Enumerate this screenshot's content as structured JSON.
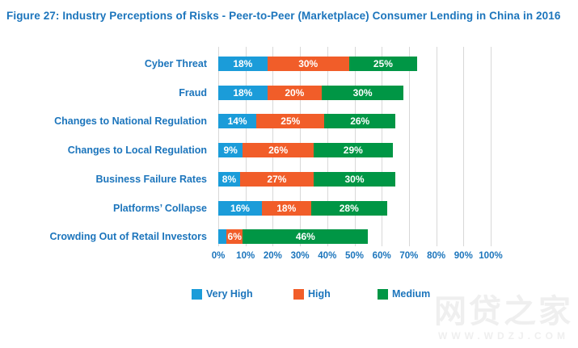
{
  "title": "Figure 27: Industry Perceptions of Risks - Peer-to-Peer (Marketplace) Consumer Lending in China in 2016",
  "colors": {
    "title_blue": "#1C75BC",
    "label_blue": "#1C75BC",
    "tick_blue": "#1C75BC",
    "very_high": "#1B9CD9",
    "high": "#F15D29",
    "medium": "#009645",
    "gridline": "#D8D8D8",
    "bar_label": "#FFFFFF",
    "watermark": "#EFEFEF"
  },
  "chart_data": {
    "type": "bar",
    "orientation": "horizontal",
    "stacked": true,
    "title": "Figure 27: Industry Perceptions of Risks - Peer-to-Peer (Marketplace) Consumer Lending in China in 2016",
    "categories": [
      "Cyber Threat",
      "Fraud",
      "Changes to National Regulation",
      "Changes to Local Regulation",
      "Business Failure Rates",
      "Platforms’ Collapse",
      "Crowding Out of Retail Investors"
    ],
    "series": [
      {
        "name": "Very High",
        "color_key": "very_high",
        "values": [
          18,
          18,
          14,
          9,
          8,
          16,
          3
        ],
        "labels": [
          "18%",
          "18%",
          "14%",
          "9%",
          "8%",
          "16%",
          ""
        ]
      },
      {
        "name": "High",
        "color_key": "high",
        "values": [
          30,
          20,
          25,
          26,
          27,
          18,
          6
        ],
        "labels": [
          "30%",
          "20%",
          "25%",
          "26%",
          "27%",
          "18%",
          "6%"
        ]
      },
      {
        "name": "Medium",
        "color_key": "medium",
        "values": [
          25,
          30,
          26,
          29,
          30,
          28,
          46
        ],
        "labels": [
          "25%",
          "30%",
          "26%",
          "29%",
          "30%",
          "28%",
          "46%"
        ]
      }
    ],
    "x_ticks": [
      "0%",
      "10%",
      "20%",
      "30%",
      "40%",
      "50%",
      "60%",
      "70%",
      "80%",
      "90%",
      "100%"
    ],
    "xlim": [
      0,
      100
    ],
    "grid": true,
    "legend_position": "bottom"
  },
  "legend": [
    {
      "label": "Very High",
      "color_key": "very_high"
    },
    {
      "label": "High",
      "color_key": "high"
    },
    {
      "label": "Medium",
      "color_key": "medium"
    }
  ],
  "watermark": {
    "brand": "网贷之家",
    "url": "WWW.WDZJ.COM"
  }
}
